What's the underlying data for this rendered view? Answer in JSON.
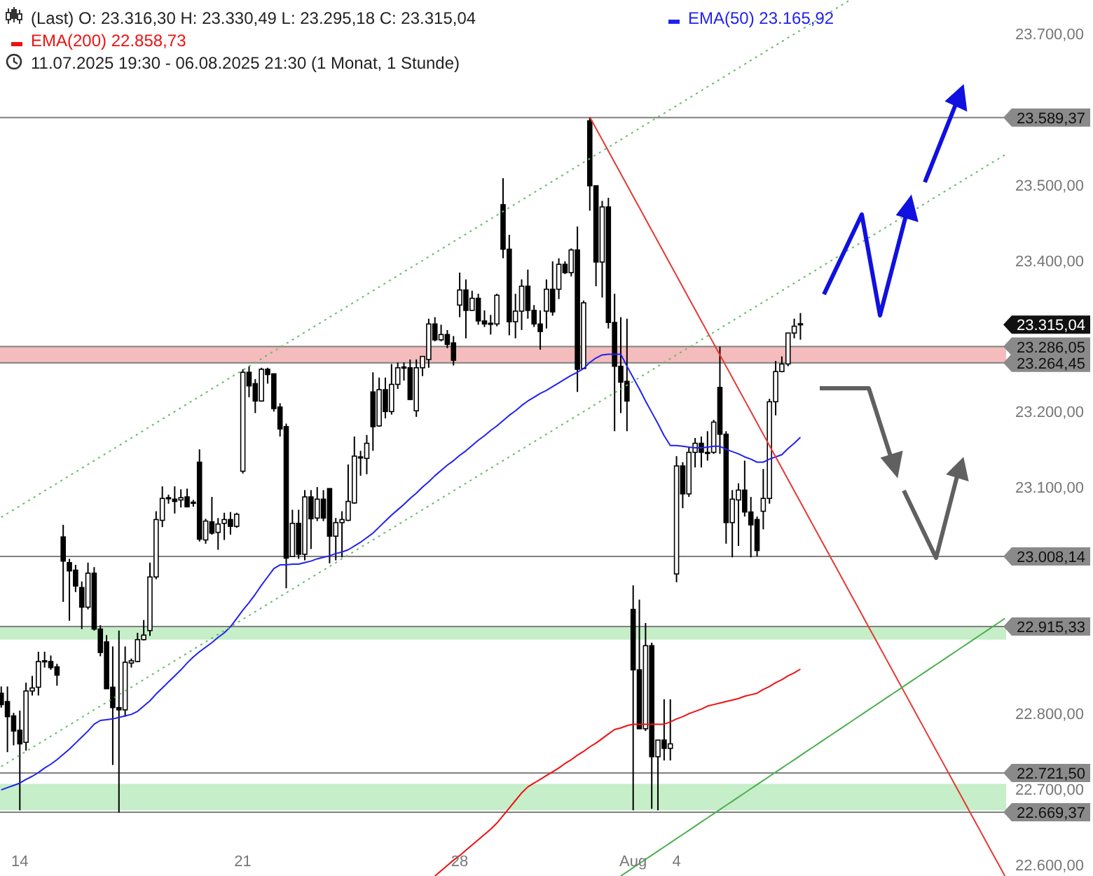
{
  "chart_data": {
    "type": "candlestick",
    "title": "(Last)  O: 23.316,30  H: 23.330,49  L: 23.295,18  C: 23.315,04",
    "subtitle": "11.07.2025 19:30 - 06.08.2025 21:30  (1 Monat, 1 Stunde)",
    "categories": [
      null,
      null,
      null,
      "14",
      null,
      null,
      null,
      null,
      null,
      null,
      null,
      null,
      null,
      null,
      null,
      null,
      null,
      null,
      null,
      null,
      null,
      null,
      null,
      null,
      null,
      null,
      null,
      null,
      null,
      null,
      null,
      null,
      null,
      null,
      null,
      null,
      null,
      null,
      null,
      "21",
      null,
      null,
      null,
      null,
      null,
      null,
      null,
      null,
      null,
      null,
      null,
      null,
      null,
      null,
      null,
      null,
      null,
      null,
      null,
      null,
      null,
      null,
      null,
      null,
      null,
      null,
      null,
      null,
      null,
      null,
      null,
      null,
      null,
      null,
      "28",
      null,
      null,
      null,
      null,
      null,
      null,
      null,
      null,
      null,
      null,
      null,
      null,
      null,
      null,
      null,
      null,
      null,
      null,
      null,
      null,
      null,
      null,
      null,
      null,
      null,
      null,
      null,
      "Aug",
      null,
      null,
      null,
      null,
      null,
      null,
      "4",
      null,
      null,
      null,
      null,
      null,
      null,
      null,
      null,
      null,
      null,
      null,
      null,
      null,
      null,
      null,
      null,
      null,
      null,
      null,
      null,
      null,
      null,
      null,
      null,
      null,
      null,
      null,
      null,
      null,
      null,
      null,
      null,
      null,
      null,
      null,
      null,
      null,
      null,
      null,
      null,
      null,
      null,
      null,
      null,
      null,
      null,
      null,
      null,
      null,
      null,
      null,
      null,
      null
    ],
    "ohlc": [
      [
        22827,
        22836,
        22808,
        22812
      ],
      [
        22816,
        22836,
        22749,
        22796
      ],
      [
        22797,
        22801,
        22758,
        22777
      ],
      [
        22778,
        22804,
        22672,
        22760
      ],
      [
        22762,
        22841,
        22751,
        22830
      ],
      [
        22830,
        22850,
        22824,
        22834
      ],
      [
        22835,
        22882,
        22824,
        22869
      ],
      [
        22870,
        22882,
        22861,
        22869
      ],
      [
        22869,
        22877,
        22858,
        22861
      ],
      [
        22862,
        22866,
        22837,
        22851
      ],
      [
        23034,
        23050,
        22948,
        23002
      ],
      [
        23000,
        23005,
        22923,
        22989
      ],
      [
        22990,
        22997,
        22961,
        22969
      ],
      [
        22967,
        22975,
        22912,
        22941
      ],
      [
        22941,
        23000,
        22938,
        22986
      ],
      [
        22986,
        22994,
        22910,
        22912
      ],
      [
        22912,
        22917,
        22876,
        22881
      ],
      [
        22895,
        22904,
        22833,
        22833
      ],
      [
        22835,
        22889,
        22732,
        22808
      ],
      [
        22808,
        22910,
        22669,
        22805
      ],
      [
        22805,
        22889,
        22796,
        22868
      ],
      [
        22867,
        22873,
        22861,
        22870
      ],
      [
        22869,
        22907,
        22868,
        22898
      ],
      [
        22898,
        22924,
        22897,
        22904
      ],
      [
        22910,
        23000,
        22903,
        22981
      ],
      [
        22981,
        23068,
        22978,
        23057
      ],
      [
        23056,
        23101,
        23047,
        23085
      ],
      [
        23085,
        23090,
        23078,
        23086
      ],
      [
        23084,
        23101,
        23065,
        23081
      ],
      [
        23083,
        23097,
        23073,
        23086
      ],
      [
        23087,
        23098,
        23073,
        23074
      ],
      [
        23079,
        23083,
        23074,
        23080
      ],
      [
        23133,
        23150,
        23028,
        23031
      ],
      [
        23030,
        23058,
        23025,
        23055
      ],
      [
        23054,
        23087,
        23037,
        23039
      ],
      [
        23040,
        23059,
        23017,
        23051
      ],
      [
        23052,
        23066,
        23030,
        23057
      ],
      [
        23057,
        23067,
        23037,
        23048
      ],
      [
        23048,
        23066,
        23046,
        23064
      ],
      [
        23121,
        23256,
        23118,
        23252
      ],
      [
        23252,
        23260,
        23219,
        23234
      ],
      [
        23237,
        23243,
        23198,
        23214
      ],
      [
        23214,
        23258,
        23213,
        23256
      ],
      [
        23256,
        23258,
        23237,
        23249
      ],
      [
        23250,
        23250,
        23200,
        23204
      ],
      [
        23206,
        23211,
        23167,
        23177
      ],
      [
        23180,
        23184,
        22966,
        23006
      ],
      [
        23008,
        23070,
        23008,
        23052
      ],
      [
        23052,
        23070,
        23005,
        23011
      ],
      [
        23011,
        23096,
        23003,
        23087
      ],
      [
        23087,
        23096,
        23018,
        23058
      ],
      [
        23059,
        23100,
        23055,
        23084
      ],
      [
        23084,
        23096,
        23055,
        23059
      ],
      [
        23098,
        23098,
        22999,
        23035
      ],
      [
        23035,
        23059,
        23003,
        23053
      ],
      [
        23053,
        23068,
        23007,
        23057
      ],
      [
        23056,
        23130,
        23055,
        23081
      ],
      [
        23079,
        23167,
        23078,
        23141
      ],
      [
        23140,
        23148,
        23115,
        23139
      ],
      [
        23138,
        23169,
        23117,
        23158
      ],
      [
        23226,
        23252,
        23148,
        23180
      ],
      [
        23181,
        23245,
        23180,
        23229
      ],
      [
        23229,
        23245,
        23191,
        23200
      ],
      [
        23200,
        23263,
        23196,
        23236
      ],
      [
        23236,
        23265,
        23230,
        23258
      ],
      [
        23258,
        23265,
        23241,
        23259
      ],
      [
        23258,
        23269,
        23215,
        23216
      ],
      [
        23201,
        23269,
        23193,
        23258
      ],
      [
        23258,
        23273,
        23247,
        23273
      ],
      [
        23269,
        23323,
        23258,
        23316
      ],
      [
        23316,
        23325,
        23293,
        23295
      ],
      [
        23295,
        23315,
        23293,
        23302
      ],
      [
        23302,
        23308,
        23284,
        23289
      ],
      [
        23291,
        23300,
        23261,
        23268
      ],
      [
        23341,
        23384,
        23325,
        23361
      ],
      [
        23361,
        23375,
        23297,
        23334
      ],
      [
        23334,
        23360,
        23334,
        23350
      ],
      [
        23350,
        23356,
        23315,
        23320
      ],
      [
        23320,
        23334,
        23312,
        23316
      ],
      [
        23316,
        23328,
        23302,
        23317
      ],
      [
        23316,
        23356,
        23313,
        23354
      ],
      [
        23474,
        23509,
        23403,
        23415
      ],
      [
        23415,
        23434,
        23301,
        23319
      ],
      [
        23319,
        23356,
        23297,
        23333
      ],
      [
        23333,
        23375,
        23308,
        23366
      ],
      [
        23366,
        23388,
        23323,
        23334
      ],
      [
        23334,
        23341,
        23312,
        23316
      ],
      [
        23316,
        23334,
        23282,
        23306
      ],
      [
        23333,
        23375,
        23310,
        23362
      ],
      [
        23362,
        23399,
        23327,
        23332
      ],
      [
        23362,
        23403,
        23349,
        23395
      ],
      [
        23395,
        23399,
        23382,
        23384
      ],
      [
        23384,
        23416,
        23379,
        23414
      ],
      [
        23414,
        23445,
        23226,
        23256
      ],
      [
        23257,
        23347,
        23257,
        23344
      ],
      [
        23585,
        23589.37,
        23466,
        23499
      ],
      [
        23499,
        23499,
        23366,
        23398
      ],
      [
        23398,
        23479,
        23351,
        23471
      ],
      [
        23471,
        23483,
        23310,
        23318
      ],
      [
        23318,
        23356,
        23174,
        23260
      ],
      [
        23260,
        23325,
        23198,
        23239
      ],
      [
        23240,
        23323,
        23174,
        23214
      ],
      [
        22938,
        22970,
        22672,
        22858
      ],
      [
        22858,
        22951,
        22780,
        22780
      ],
      [
        22780,
        22920,
        22777,
        22890
      ],
      [
        22890,
        22894,
        22674,
        22743
      ],
      [
        22743,
        22765,
        22672,
        22765
      ],
      [
        22765,
        22819,
        22738,
        22754
      ],
      [
        22754,
        22819,
        22738,
        22760
      ],
      [
        22985,
        23141,
        22974,
        23128
      ],
      [
        23128,
        23133,
        23072,
        23091
      ],
      [
        23091,
        23152,
        23087,
        23146
      ],
      [
        23146,
        23165,
        23126,
        23158
      ],
      [
        23158,
        23167,
        23126,
        23146
      ],
      [
        23146,
        23174,
        23135,
        23145
      ],
      [
        23146,
        23189,
        23144,
        23186
      ],
      [
        23232,
        23286,
        23144,
        23170
      ],
      [
        23170,
        23174,
        23025,
        23053
      ],
      [
        23053,
        23096,
        23007,
        23084
      ],
      [
        23083,
        23105,
        23022,
        23096
      ],
      [
        23096,
        23135,
        23061,
        23067
      ],
      [
        23067,
        23087,
        23007,
        23050
      ],
      [
        23057,
        23061,
        23008.14,
        23016
      ],
      [
        23068,
        23124,
        23044,
        23085
      ],
      [
        23085,
        23217,
        23078,
        23213
      ],
      [
        23213,
        23267,
        23195,
        23253
      ],
      [
        23253,
        23273,
        23252,
        23263
      ],
      [
        23263,
        23304,
        23260,
        23304
      ],
      [
        23304,
        23323,
        23297,
        23313
      ],
      [
        23316.3,
        23330.49,
        23295.18,
        23315.04
      ],
      null,
      null,
      null,
      null,
      null,
      null,
      null,
      null,
      null,
      null,
      null,
      null,
      null,
      null,
      null,
      null,
      null,
      null,
      null,
      null,
      null,
      null,
      null,
      null,
      null,
      null,
      null,
      null,
      null,
      null,
      null,
      null,
      null
    ],
    "series": [
      {
        "name": "EMA(50)  23.165,92",
        "type": "line",
        "color": "#2222ee",
        "values": [
          22699,
          22702,
          22705,
          22708,
          22713,
          22717,
          22722,
          22728,
          22733,
          22739,
          22746,
          22753,
          22761,
          22769,
          22777,
          22786,
          22791,
          22792,
          22793,
          22795,
          22797,
          22799,
          22803,
          22810,
          22817,
          22826,
          22834,
          22842,
          22850,
          22858,
          22867,
          22875,
          22882,
          22888,
          22894,
          22901,
          22907,
          22915,
          22926,
          22937,
          22947,
          22958,
          22970,
          22981,
          22992,
          22997,
          22997,
          22998,
          22998,
          23000,
          23002,
          23005,
          23007,
          23009,
          23012,
          23014,
          23017,
          23022,
          23027,
          23033,
          23039,
          23047,
          23055,
          23063,
          23070,
          23077,
          23085,
          23092,
          23100,
          23107,
          23115,
          23122,
          23129,
          23135,
          23142,
          23148,
          23155,
          23162,
          23168,
          23175,
          23181,
          23188,
          23195,
          23201,
          23208,
          23214,
          23219,
          23224,
          23228,
          23233,
          23238,
          23243,
          23248,
          23252,
          23257,
          23265,
          23271,
          23275,
          23276,
          23276,
          23276,
          23260,
          23245,
          23230,
          23214,
          23199,
          23184,
          23168,
          23155,
          23155,
          23154,
          23153,
          23152,
          23152,
          23153,
          23154,
          23154,
          23150,
          23147,
          23144,
          23140,
          23137,
          23133,
          23133,
          23137,
          23140,
          23143,
          23151,
          23158,
          23166,
          null,
          null,
          null,
          null,
          null,
          null,
          null,
          null,
          null,
          null,
          null,
          null,
          null,
          null,
          null,
          null,
          null,
          null,
          null,
          null,
          null,
          null,
          null,
          null,
          null,
          null,
          null,
          null,
          null,
          null,
          null,
          null,
          null
        ]
      },
      {
        "name": "EMA(200)  22.858,73",
        "type": "line",
        "color": "#ee1111",
        "values": [
          null,
          null,
          null,
          null,
          null,
          null,
          null,
          null,
          null,
          null,
          null,
          null,
          null,
          null,
          null,
          null,
          null,
          null,
          null,
          null,
          null,
          null,
          null,
          null,
          null,
          null,
          null,
          null,
          null,
          null,
          null,
          null,
          null,
          null,
          null,
          null,
          null,
          null,
          null,
          null,
          null,
          null,
          null,
          null,
          null,
          null,
          null,
          null,
          null,
          null,
          null,
          null,
          null,
          null,
          null,
          null,
          null,
          null,
          null,
          null,
          null,
          null,
          null,
          null,
          null,
          null,
          null,
          null,
          null,
          null,
          22585,
          22592,
          22599,
          22606,
          22612,
          22619,
          22626,
          22633,
          22640,
          22647,
          22655,
          22665,
          22675,
          22685,
          22695,
          22703,
          22708,
          22713,
          22718,
          22723,
          22728,
          22734,
          22739,
          22745,
          22750,
          22756,
          22761,
          22767,
          22773,
          22779,
          22781,
          22784,
          22786,
          22786,
          22786,
          22786,
          22786,
          22786,
          22789,
          22793,
          22796,
          22800,
          22803,
          22806,
          22810,
          22812,
          22814,
          22816,
          22818,
          22820,
          22823,
          22825,
          22827,
          22832,
          22836,
          22841,
          22845,
          22850,
          22854,
          22859,
          null,
          null,
          null,
          null,
          null,
          null,
          null,
          null,
          null,
          null,
          null,
          null,
          null,
          null,
          null,
          null,
          null,
          null,
          null,
          null,
          null,
          null,
          null,
          null,
          null,
          null,
          null,
          null,
          null,
          null,
          null,
          null,
          null
        ]
      },
      {
        "type": "line",
        "color": "#e53935",
        "values": [
          null,
          null,
          null,
          null,
          null,
          null,
          null,
          null,
          null,
          null,
          null,
          null,
          null,
          null,
          null,
          null,
          null,
          null,
          null,
          null,
          null,
          null,
          null,
          null,
          null,
          null,
          null,
          null,
          null,
          null,
          null,
          null,
          null,
          null,
          null,
          null,
          null,
          null,
          null,
          null,
          null,
          null,
          null,
          null,
          null,
          null,
          null,
          null,
          null,
          null,
          null,
          null,
          null,
          null,
          null,
          null,
          null,
          null,
          null,
          null,
          null,
          null,
          null,
          null,
          null,
          null,
          null,
          null,
          null,
          null,
          null,
          null,
          null,
          null,
          null,
          null,
          null,
          null,
          null,
          null,
          null,
          null,
          null,
          null,
          null,
          null,
          null,
          null,
          null,
          null,
          null,
          null,
          null,
          null,
          null,
          23590,
          23575,
          23560,
          23545,
          23530,
          23515,
          23500,
          23485,
          23470,
          23455,
          23440,
          23425,
          23410,
          23395,
          23380,
          23365,
          23350,
          23335,
          23320,
          23305,
          23290,
          23275,
          23260,
          23245,
          23230,
          23215,
          23200,
          23185,
          23170,
          23155,
          23140,
          23125,
          23110,
          23095,
          23080,
          23065,
          23050,
          23035,
          23020,
          23005,
          22990,
          22975,
          22960,
          22945,
          22930,
          22915,
          22900,
          22885,
          22870,
          22855,
          22840,
          22825,
          22810,
          22795,
          22780,
          22765,
          22750,
          22735,
          22720,
          22705,
          22690,
          22675,
          22660,
          22645,
          22630,
          22615,
          22600,
          22585
        ]
      },
      {
        "type": "line",
        "color": "#4caf50",
        "values": [
          null,
          null,
          null,
          null,
          null,
          null,
          null,
          null,
          null,
          null,
          null,
          null,
          null,
          null,
          null,
          null,
          null,
          null,
          null,
          null,
          null,
          null,
          null,
          null,
          null,
          null,
          null,
          null,
          null,
          null,
          null,
          null,
          null,
          null,
          null,
          null,
          null,
          null,
          null,
          null,
          null,
          null,
          null,
          null,
          null,
          null,
          null,
          null,
          null,
          null,
          null,
          null,
          null,
          null,
          null,
          null,
          null,
          null,
          null,
          null,
          null,
          null,
          null,
          null,
          null,
          null,
          null,
          null,
          null,
          null,
          null,
          null,
          null,
          null,
          null,
          null,
          null,
          null,
          null,
          null,
          null,
          null,
          null,
          null,
          null,
          null,
          null,
          null,
          null,
          null,
          null,
          null,
          null,
          null,
          null,
          null,
          null,
          null,
          null,
          null,
          22585,
          22590.5,
          22596,
          22601.5,
          22607,
          22612.5,
          22618,
          22623.5,
          22629,
          22634.5,
          22640,
          22645.5,
          22651,
          22656.5,
          22662,
          22667.5,
          22673,
          22678.5,
          22684,
          22689.5,
          22695,
          22700.5,
          22706,
          22711.5,
          22717,
          22722.5,
          22728,
          22733.5,
          22739,
          22744.5,
          22750,
          22755.5,
          22761,
          22766.5,
          22772,
          22777.5,
          22783,
          22788.5,
          22794,
          22799.5,
          22805,
          22810.5,
          22816,
          22821.5,
          22827,
          22832.5,
          22838,
          22843.5,
          22849,
          22854.5,
          22860,
          22865.5,
          22871,
          22876.5,
          22882,
          22887.5,
          22893,
          22898.5,
          22904,
          22909.5,
          22915,
          22920.5,
          22926
        ]
      },
      {
        "type": "line",
        "color": "#66bb6a",
        "line_style": "dotted",
        "values": [
          23060,
          23065,
          23070,
          23075,
          23080,
          23085,
          23090,
          23095,
          23100,
          23105,
          23110,
          23115,
          23120,
          23125,
          23130,
          23135,
          23140,
          23145,
          23150,
          23155,
          23160,
          23165,
          23170,
          23175,
          23180,
          23185,
          23190,
          23195,
          23200,
          23205,
          23210,
          23215,
          23220,
          23225,
          23230,
          23235,
          23240,
          23245,
          23250,
          23255,
          23260,
          23265,
          23270,
          23275,
          23280,
          23285,
          23290,
          23295,
          23300,
          23305,
          23310,
          23315,
          23320,
          23325,
          23330,
          23335,
          23340,
          23345,
          23350,
          23355,
          23360,
          23365,
          23370,
          23375,
          23380,
          23385,
          23390,
          23395,
          23400,
          23405,
          23410,
          23415,
          23420,
          23425,
          23430,
          23435,
          23440,
          23445,
          23450,
          23455,
          23460,
          23465,
          23470,
          23475,
          23480,
          23485,
          23490,
          23495,
          23500,
          23505,
          23510,
          23515,
          23520,
          23525,
          23530,
          23535,
          23540,
          23545,
          23550,
          23555,
          23560,
          23565,
          23570,
          23575,
          23580,
          23585,
          23590,
          23595,
          23600,
          23605,
          23610,
          23615,
          23620,
          23625,
          23630,
          23635,
          23640,
          23645,
          23650,
          23655,
          23660,
          23665,
          23670,
          23675,
          23680,
          23685,
          23690,
          23695,
          23700,
          23705,
          23710,
          23715,
          23720,
          23725,
          23730,
          23735,
          23740,
          23745,
          null,
          null,
          null,
          null,
          null,
          null,
          null,
          null,
          null,
          null,
          null,
          null,
          null,
          null,
          null,
          null,
          null,
          null,
          null,
          null,
          null,
          null,
          null,
          null,
          null
        ]
      },
      {
        "type": "line",
        "color": "#66bb6a",
        "line_style": "dotted",
        "values": [
          22730,
          22735,
          22740,
          22745,
          22750,
          22755,
          22760,
          22765,
          22770,
          22775,
          22780,
          22785,
          22790,
          22795,
          22800,
          22805,
          22810,
          22815,
          22820,
          22825,
          22830,
          22835,
          22840,
          22845,
          22850,
          22855,
          22860,
          22865,
          22870,
          22875,
          22880,
          22885,
          22890,
          22895,
          22900,
          22905,
          22910,
          22915,
          22920,
          22925,
          22930,
          22935,
          22940,
          22945,
          22950,
          22955,
          22960,
          22965,
          22970,
          22975,
          22980,
          22985,
          22990,
          22995,
          23000,
          23005,
          23010,
          23015,
          23020,
          23025,
          23030,
          23035,
          23040,
          23045,
          23050,
          23055,
          23060,
          23065,
          23070,
          23075,
          23080,
          23085,
          23090,
          23095,
          23100,
          23105,
          23110,
          23115,
          23120,
          23125,
          23130,
          23135,
          23140,
          23145,
          23150,
          23155,
          23160,
          23165,
          23170,
          23175,
          23180,
          23185,
          23190,
          23195,
          23200,
          23205,
          23210,
          23215,
          23220,
          23225,
          23230,
          23235,
          23240,
          23245,
          23250,
          23255,
          23260,
          23265,
          23270,
          23275,
          23280,
          23285,
          23290,
          23295,
          23300,
          23305,
          23310,
          23315,
          23320,
          23325,
          23330,
          23335,
          23340,
          23345,
          23350,
          23355,
          23360,
          23365,
          23370,
          23375,
          23380,
          23385,
          23390,
          23395,
          23400,
          23405,
          23410,
          23415,
          23420,
          23425,
          23430,
          23435,
          23440,
          23445,
          23450,
          23455,
          23460,
          23465,
          23470,
          23475,
          23480,
          23485,
          23490,
          23495,
          23500,
          23505,
          23510,
          23515,
          23520,
          23525,
          23530,
          23535,
          23540
        ]
      }
    ],
    "ylim": [
      22585,
      23745
    ],
    "yticks": [
      {
        "value": 22600,
        "label": "22.600,00"
      },
      {
        "value": 22700,
        "label": "22.700,00"
      },
      {
        "value": 22800,
        "label": "22.800,00"
      },
      {
        "value": 23100,
        "label": "23.100,00"
      },
      {
        "value": 23200,
        "label": "23.200,00"
      },
      {
        "value": 23400,
        "label": "23.400,00"
      },
      {
        "value": 23500,
        "label": "23.500,00"
      },
      {
        "value": 23700,
        "label": "23.700,00"
      }
    ],
    "bands": [
      {
        "axis": "y",
        "from": 22898,
        "to": 22915.33,
        "color": "#c6eec8"
      },
      {
        "axis": "y",
        "from": 22672,
        "to": 22707,
        "color": "#c6eec8"
      },
      {
        "axis": "y",
        "from": 23264.45,
        "to": 23286.05,
        "color": "#f4bcbc"
      }
    ],
    "ref_lines": [
      {
        "axis": "y",
        "value": 23589.37,
        "label": "23.589,37",
        "color": "#808080"
      },
      {
        "axis": "y",
        "value": 23286.05,
        "label": "23.286,05",
        "color": "#808080"
      },
      {
        "axis": "y",
        "value": 23264.45,
        "label": "23.264,45",
        "color": "#808080"
      },
      {
        "axis": "y",
        "value": 23008.14,
        "label": "23.008,14",
        "color": "#808080"
      },
      {
        "axis": "y",
        "value": 22915.33,
        "label": "22.915,33",
        "color": "#808080"
      },
      {
        "axis": "y",
        "value": 22721.5,
        "label": "22.721,50",
        "color": "#808080"
      },
      {
        "axis": "y",
        "value": 22669.37,
        "label": "22.669,37",
        "color": "#808080"
      }
    ],
    "annotations": [
      "23.315,04"
    ],
    "legend": "top left",
    "grid": false
  }
}
